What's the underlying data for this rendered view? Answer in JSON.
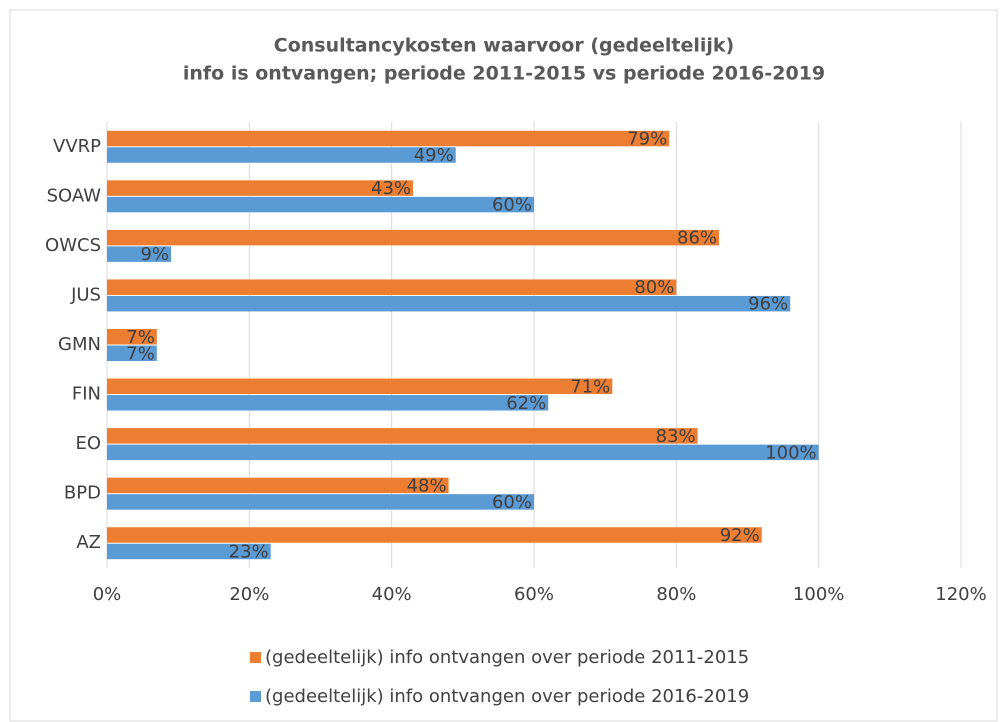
{
  "chart_data": {
    "type": "hbar",
    "title": [
      "Consultancykosten waarvoor (gedeeltelijk)",
      "info is ontvangen; periode 2011-2015 vs periode 2016-2019"
    ],
    "categories": [
      "VVRP",
      "SOAW",
      "OWCS",
      "JUS",
      "GMN",
      "FIN",
      "EO",
      "BPD",
      "AZ"
    ],
    "series": [
      {
        "name": "(gedeeltelijk) info ontvangen over periode 2011-2015",
        "color": "#ed7d31",
        "values": [
          79,
          43,
          86,
          80,
          7,
          71,
          83,
          48,
          92
        ],
        "value_labels": [
          "79%",
          "43%",
          "86%",
          "80%",
          "7%",
          "71%",
          "83%",
          "48%",
          "92%"
        ]
      },
      {
        "name": "(gedeeltelijk) info ontvangen over periode 2016-2019",
        "color": "#5b9bd5",
        "values": [
          49,
          60,
          9,
          96,
          7,
          62,
          100,
          60,
          23
        ],
        "value_labels": [
          "49%",
          "60%",
          "9%",
          "96%",
          "7%",
          "62%",
          "100%",
          "60%",
          "23%"
        ]
      }
    ],
    "xlim": [
      0,
      120
    ],
    "xticks": [
      {
        "value": 0,
        "label": "0%"
      },
      {
        "value": 20,
        "label": "20%"
      },
      {
        "value": 40,
        "label": "40%"
      },
      {
        "value": 60,
        "label": "60%"
      },
      {
        "value": 80,
        "label": "80%"
      },
      {
        "value": 100,
        "label": "100%"
      },
      {
        "value": 120,
        "label": "120%"
      }
    ],
    "grid": true,
    "legend": "bottom"
  }
}
